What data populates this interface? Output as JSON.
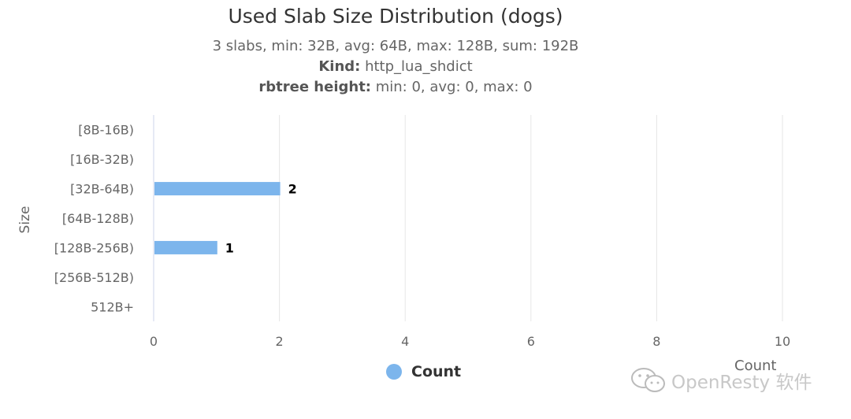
{
  "chart_data": {
    "type": "bar",
    "orientation": "horizontal",
    "title": "Used Slab Size Distribution (dogs)",
    "subtitle_lines": [
      {
        "label": "",
        "text": "3 slabs, min: 32B, avg: 64B, max: 128B, sum: 192B"
      },
      {
        "label": "Kind:",
        "text": "http_lua_shdict"
      },
      {
        "label": "rbtree height:",
        "text": "min: 0, avg: 0, max: 0"
      }
    ],
    "categories": [
      "[8B-16B)",
      "[16B-32B)",
      "[32B-64B)",
      "[64B-128B)",
      "[128B-256B)",
      "[256B-512B)",
      "512B+"
    ],
    "series": [
      {
        "name": "Count",
        "values": [
          0,
          0,
          2,
          0,
          1,
          0,
          0
        ],
        "color": "#7cb5ec"
      }
    ],
    "data_labels": [
      "",
      "",
      "2",
      "",
      "1",
      "",
      ""
    ],
    "xlabel": "Count",
    "ylabel": "Size",
    "xlim": [
      0,
      10
    ],
    "xticks": [
      0,
      2,
      4,
      6,
      8,
      10
    ],
    "grid": true,
    "legend": "bottom"
  },
  "watermark": {
    "text": "OpenResty 软件",
    "icon": "wechat-icon"
  }
}
